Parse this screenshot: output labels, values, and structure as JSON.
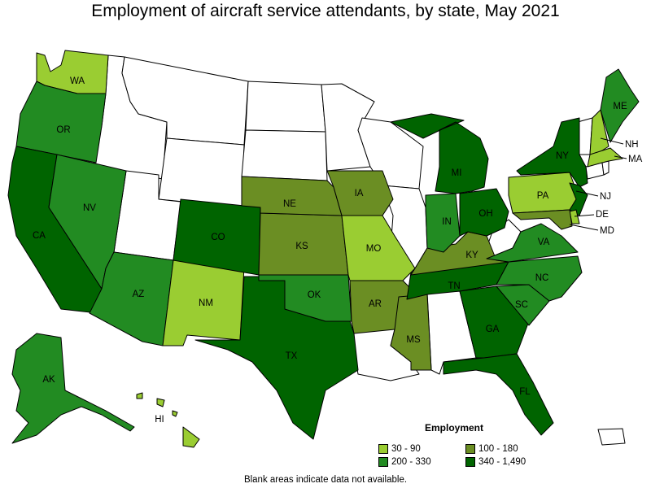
{
  "title": "Employment of aircraft service attendants, by state, May 2021",
  "legend": {
    "title": "Employment",
    "items": [
      {
        "label": "30 - 90",
        "color": "#9acd32"
      },
      {
        "label": "100 - 180",
        "color": "#6b8e23"
      },
      {
        "label": "200 - 330",
        "color": "#228b22"
      },
      {
        "label": "340 - 1,490",
        "color": "#006400"
      }
    ]
  },
  "footnote": "Blank areas indicate data not available.",
  "colors": {
    "none": "#ffffff",
    "c1": "#9acd32",
    "c2": "#6b8e23",
    "c3": "#228b22",
    "c4": "#006400"
  },
  "states": {
    "WA": {
      "label": "WA",
      "class": "c1"
    },
    "OR": {
      "label": "OR",
      "class": "c3"
    },
    "CA": {
      "label": "CA",
      "class": "c4"
    },
    "NV": {
      "label": "NV",
      "class": "c3"
    },
    "AZ": {
      "label": "AZ",
      "class": "c3"
    },
    "NM": {
      "label": "NM",
      "class": "c1"
    },
    "CO": {
      "label": "CO",
      "class": "c4"
    },
    "TX": {
      "label": "TX",
      "class": "c4"
    },
    "OK": {
      "label": "OK",
      "class": "c3"
    },
    "KS": {
      "label": "KS",
      "class": "c2"
    },
    "NE": {
      "label": "NE",
      "class": "c2"
    },
    "IA": {
      "label": "IA",
      "class": "c2"
    },
    "MO": {
      "label": "MO",
      "class": "c1"
    },
    "AR": {
      "label": "AR",
      "class": "c2"
    },
    "MS": {
      "label": "MS",
      "class": "c2"
    },
    "TN": {
      "label": "TN",
      "class": "c4"
    },
    "KY": {
      "label": "KY",
      "class": "c2"
    },
    "IN": {
      "label": "IN",
      "class": "c3"
    },
    "OH": {
      "label": "OH",
      "class": "c4"
    },
    "MI": {
      "label": "MI",
      "class": "c4"
    },
    "GA": {
      "label": "GA",
      "class": "c4"
    },
    "FL": {
      "label": "FL",
      "class": "c4"
    },
    "SC": {
      "label": "SC",
      "class": "c3"
    },
    "NC": {
      "label": "NC",
      "class": "c3"
    },
    "VA": {
      "label": "VA",
      "class": "c3"
    },
    "PA": {
      "label": "PA",
      "class": "c1"
    },
    "NY": {
      "label": "NY",
      "class": "c4"
    },
    "NJ": {
      "label": "NJ",
      "class": "c4"
    },
    "DE": {
      "label": "DE",
      "class": "c1"
    },
    "MD": {
      "label": "MD",
      "class": "c2"
    },
    "NH": {
      "label": "NH",
      "class": "c1"
    },
    "MA": {
      "label": "MA",
      "class": "c1"
    },
    "ME": {
      "label": "ME",
      "class": "c3"
    },
    "AK": {
      "label": "AK",
      "class": "c3"
    },
    "HI": {
      "label": "HI",
      "class": "c1"
    }
  }
}
